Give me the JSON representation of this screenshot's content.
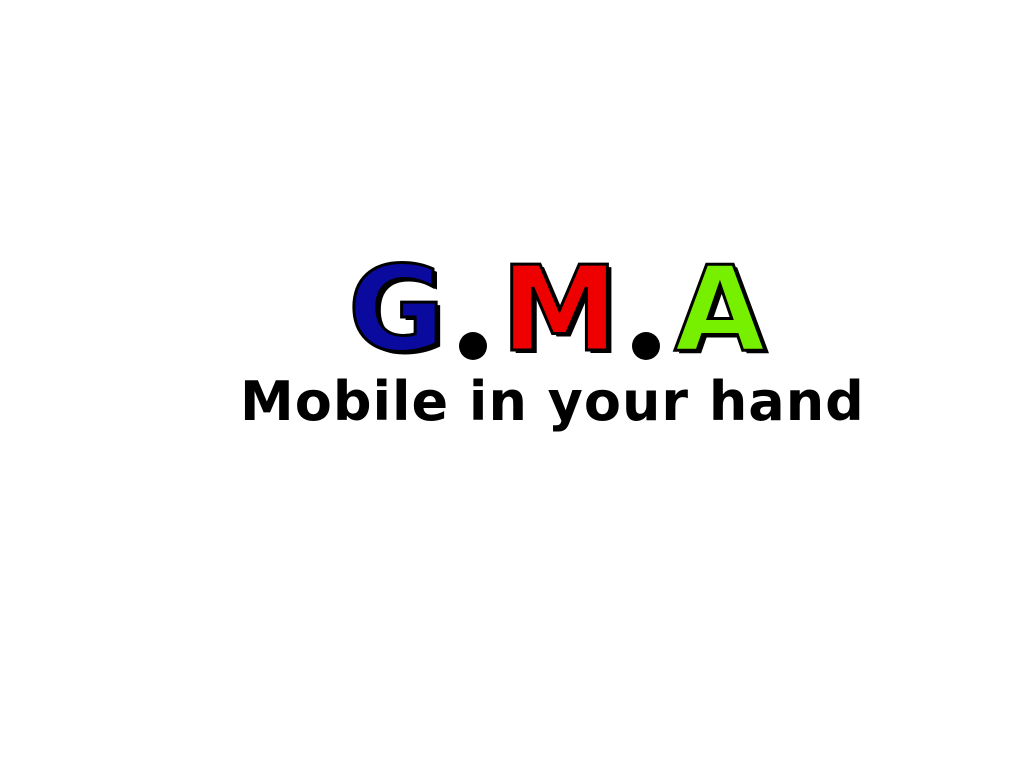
{
  "logo": {
    "letters": [
      "G",
      "M",
      "A"
    ],
    "separator": ".",
    "colors": [
      "#0a0a9e",
      "#ee0000",
      "#77f000"
    ]
  },
  "tagline": "Mobile in your hand"
}
